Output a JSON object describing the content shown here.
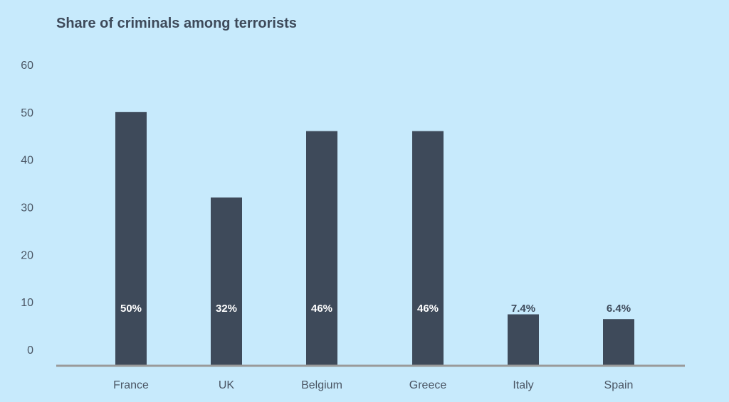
{
  "colors": {
    "background": "#c7eafc",
    "bar": "#3e4a5a",
    "label_inside": "#ffffff",
    "label_outside": "#3e4a5a",
    "axis": "#9a9a9a"
  },
  "chart_data": {
    "type": "bar",
    "title": "Share of criminals among terrorists",
    "xlabel": "",
    "ylabel": "",
    "ylim": [
      0,
      60
    ],
    "yticks": [
      "0",
      "10",
      "20",
      "30",
      "40",
      "50",
      "60"
    ],
    "grid": false,
    "categories": [
      "France",
      "UK",
      "Belgium",
      "Greece",
      "Italy",
      "Spain"
    ],
    "values": [
      50,
      32,
      46,
      46,
      7.4,
      6.4
    ],
    "data_labels": [
      "50%",
      "32%",
      "46%",
      "46%",
      "7.4%",
      "6.4%"
    ]
  }
}
